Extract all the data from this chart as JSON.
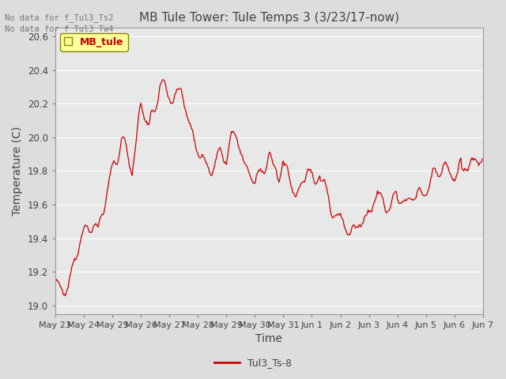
{
  "title": "MB Tule Tower: Tule Temps 3 (3/23/17-now)",
  "xlabel": "Time",
  "ylabel": "Temperature (C)",
  "ylim": [
    18.95,
    20.65
  ],
  "yticks": [
    19.0,
    19.2,
    19.4,
    19.6,
    19.8,
    20.0,
    20.2,
    20.4,
    20.6
  ],
  "line_color": "#cc0000",
  "line_label": "Tul3_Ts-8",
  "legend_label": "MB_tule",
  "legend_bg": "#ffff99",
  "legend_border": "#888800",
  "no_data_texts": [
    "No data for f_Tul3_Ts2",
    "No data for f_Tul3_Tw4"
  ],
  "background_color": "#dddddd",
  "plot_bg": "#e8e8e8",
  "grid_color": "#ffffff",
  "tick_labels": [
    "May 23",
    "May 24",
    "May 25",
    "May 26",
    "May 27",
    "May 28",
    "May 29",
    "May 30",
    "May 31",
    "Jun 1",
    "Jun 2",
    "Jun 3",
    "Jun 4",
    "Jun 5",
    "Jun 6",
    "Jun 7"
  ],
  "num_points": 600,
  "figsize": [
    6.4,
    4.8
  ],
  "dpi": 100
}
